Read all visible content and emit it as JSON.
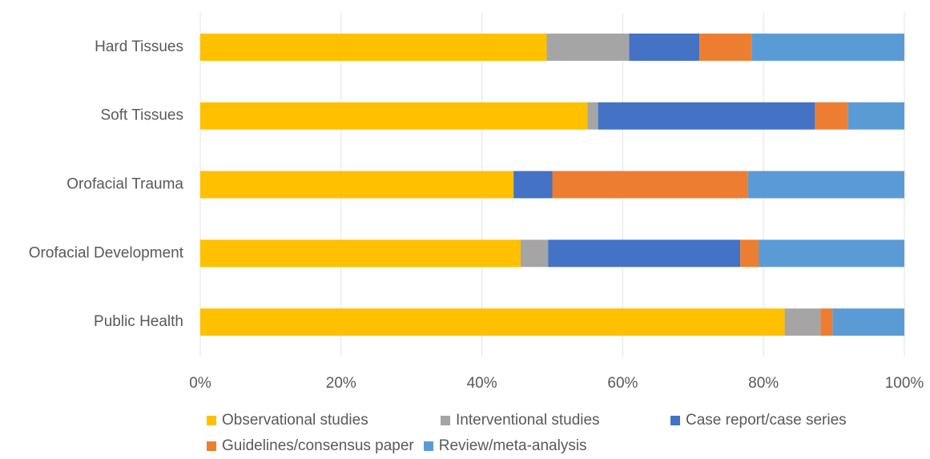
{
  "chart_data": {
    "type": "bar",
    "orientation": "horizontal",
    "stacked": "percent",
    "categories": [
      "Hard Tissues",
      "Soft Tissues",
      "Orofacial Trauma",
      "Orofacial Development",
      "Public Health"
    ],
    "series": [
      {
        "name": "Observational studies",
        "color": "#FFC000",
        "values": [
          49.2,
          55.0,
          44.5,
          45.5,
          83.0
        ]
      },
      {
        "name": "Interventional studies",
        "color": "#A5A5A5",
        "values": [
          11.7,
          1.5,
          0.0,
          3.9,
          5.1
        ]
      },
      {
        "name": "Case report/case series",
        "color": "#4472C4",
        "values": [
          10.0,
          30.8,
          5.5,
          27.3,
          0.0
        ]
      },
      {
        "name": "Guidelines/consensus paper",
        "color": "#ED7D31",
        "values": [
          7.4,
          4.7,
          27.8,
          2.6,
          1.7
        ]
      },
      {
        "name": "Review/meta-analysis",
        "color": "#5B9BD5",
        "values": [
          21.7,
          8.0,
          22.2,
          20.7,
          10.2
        ]
      }
    ],
    "xaxis": {
      "ticks": [
        "0%",
        "20%",
        "40%",
        "60%",
        "80%",
        "100%"
      ],
      "range": [
        0,
        100
      ]
    },
    "grid": "vertical",
    "legend": "bottom"
  }
}
